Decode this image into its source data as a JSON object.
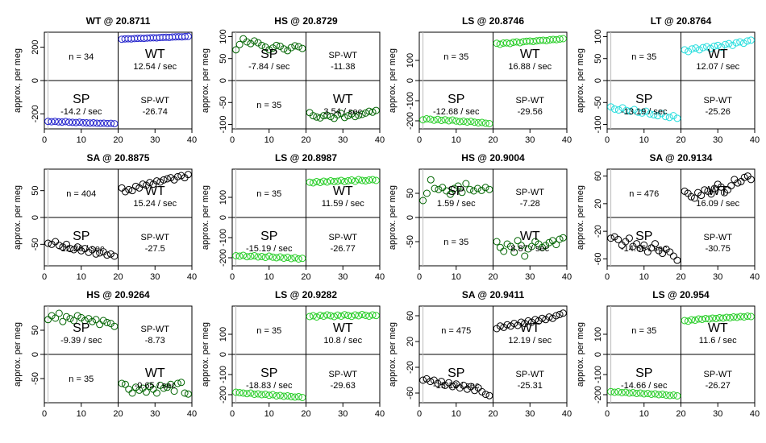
{
  "layout": {
    "rows": 3,
    "cols": 4
  },
  "chart_data": [
    {
      "type": "scatter",
      "title": "WT @ 20.8711",
      "ylabel": "approx. per meg",
      "xlim": [
        0,
        40
      ],
      "ylim": [
        -290,
        290
      ],
      "xticks": [
        0,
        10,
        20,
        30,
        40
      ],
      "yticks": [
        -200,
        0,
        200
      ],
      "color": "#2222cc",
      "points_left": [
        -245,
        -247,
        -245,
        -248,
        -249,
        -246,
        -250,
        -251,
        -252,
        -250,
        -253,
        -254,
        -255,
        -254,
        -256,
        -257,
        -256,
        -258,
        -257,
        -259
      ],
      "points_right": [
        248,
        250,
        251,
        250,
        252,
        253,
        254,
        253,
        255,
        256,
        257,
        256,
        258,
        259,
        260,
        259,
        261,
        262,
        263,
        262,
        264,
        265
      ],
      "quadrants": {
        "tl_n": "n = 34",
        "tr_label": "WT",
        "tr_rate": "12.54 / sec",
        "bl_label": "SP",
        "bl_rate": "-14.2 / sec",
        "br_label": "SP-WT",
        "br_value": "-26.74"
      }
    },
    {
      "type": "scatter",
      "title": "HS @ 20.8729",
      "ylabel": "approx. per meg",
      "xlim": [
        0,
        40
      ],
      "ylim": [
        -110,
        110
      ],
      "xticks": [
        0,
        10,
        20,
        30,
        40
      ],
      "yticks": [
        -100,
        -50,
        0,
        50,
        100
      ],
      "color": "#006400",
      "points_left": [
        70,
        82,
        95,
        88,
        84,
        90,
        86,
        80,
        76,
        70,
        74,
        80,
        78,
        72,
        68,
        75,
        79,
        77,
        73
      ],
      "points_right": [
        -73,
        -80,
        -83,
        -85,
        -80,
        -79,
        -82,
        -86,
        -78,
        -75,
        -84,
        -80,
        -76,
        -82,
        -79,
        -77,
        -74,
        -70,
        -72,
        -68
      ],
      "quadrants": {
        "tl_n": "",
        "tr_label": "SP-WT",
        "tr_rate": "-11.38",
        "bl_label": "n = 35",
        "bl_rate": "",
        "br_label": "WT",
        "br_value": "3.54 / sec"
      },
      "extra_text": {
        "tl_label": "SP",
        "tl_rate": "-7.84 / sec"
      }
    },
    {
      "type": "scatter",
      "title": "LS @ 20.8746",
      "ylabel": "approx. per meg",
      "xlim": [
        0,
        40
      ],
      "ylim": [
        -240,
        240
      ],
      "xticks": [
        0,
        10,
        20,
        30,
        40
      ],
      "yticks": [
        -200,
        -100,
        0,
        100
      ],
      "color": "#22cc22",
      "points_left": [
        -195,
        -190,
        -192,
        -197,
        -193,
        -198,
        -195,
        -200,
        -196,
        -201,
        -204,
        -202,
        -206,
        -203,
        -207,
        -210,
        -208,
        -212,
        -214
      ],
      "points_right": [
        185,
        180,
        186,
        187,
        184,
        190,
        192,
        188,
        193,
        195,
        196,
        194,
        197,
        199,
        200,
        198,
        202,
        204,
        203,
        206,
        208
      ],
      "quadrants": {
        "tl_n": "n = 35",
        "tr_label": "WT",
        "tr_rate": "16.88 / sec",
        "bl_label": "SP",
        "bl_rate": "-12.68 / sec",
        "br_label": "SP-WT",
        "br_value": "-29.56"
      }
    },
    {
      "type": "scatter",
      "title": "LT @ 20.8764",
      "ylabel": "approx. per meg",
      "xlim": [
        0,
        40
      ],
      "ylim": [
        -110,
        110
      ],
      "xticks": [
        0,
        10,
        20,
        30,
        40
      ],
      "yticks": [
        -100,
        -50,
        0,
        50,
        100
      ],
      "color": "#22dddd",
      "points_left": [
        -60,
        -65,
        -67,
        -62,
        -68,
        -70,
        -66,
        -72,
        -74,
        -70,
        -76,
        -78,
        -80,
        -75,
        -82,
        -84,
        -80,
        -86
      ],
      "points_right": [
        70,
        66,
        72,
        74,
        70,
        75,
        77,
        73,
        78,
        80,
        76,
        82,
        84,
        80,
        86,
        88,
        85,
        90,
        92
      ],
      "quadrants": {
        "tl_n": "n = 35",
        "tr_label": "WT",
        "tr_rate": "12.07 / sec",
        "bl_label": "SP",
        "bl_rate": "-13.19 / sec",
        "br_label": "SP-WT",
        "br_value": "-25.26"
      }
    },
    {
      "type": "scatter",
      "title": "SA @ 20.8875",
      "ylabel": "approx. per meg",
      "xlim": [
        0,
        40
      ],
      "ylim": [
        -90,
        90
      ],
      "xticks": [
        0,
        10,
        20,
        30,
        40
      ],
      "yticks": [
        -50,
        0,
        50
      ],
      "color": "#000000",
      "points_left": [
        -48,
        -50,
        -45,
        -52,
        -55,
        -50,
        -58,
        -60,
        -55,
        -62,
        -58,
        -65,
        -60,
        -68,
        -66,
        -64,
        -70,
        -68,
        -72
      ],
      "points_right": [
        55,
        48,
        52,
        50,
        58,
        55,
        62,
        60,
        65,
        62,
        68,
        66,
        70,
        72,
        74,
        70,
        76,
        78,
        74,
        80
      ],
      "quadrants": {
        "tl_n": "n = 404",
        "tr_label": "WT",
        "tr_rate": "15.24 / sec",
        "bl_label": "SP",
        "bl_rate": "-12.26 / sec",
        "br_label": "SP-WT",
        "br_value": "-27.5"
      }
    },
    {
      "type": "scatter",
      "title": "LS @ 20.8987",
      "ylabel": "approx. per meg",
      "xlim": [
        0,
        40
      ],
      "ylim": [
        -240,
        240
      ],
      "xticks": [
        0,
        10,
        20,
        30,
        40
      ],
      "yticks": [
        -200,
        -100,
        0,
        100
      ],
      "color": "#22cc22",
      "points_left": [
        -190,
        -192,
        -188,
        -195,
        -193,
        -190,
        -196,
        -194,
        -198,
        -192,
        -197,
        -200,
        -196,
        -202,
        -198,
        -204,
        -200,
        -206,
        -203
      ],
      "points_right": [
        175,
        172,
        178,
        174,
        180,
        176,
        182,
        178,
        180,
        184,
        178,
        182,
        186,
        180,
        188,
        184,
        182,
        186,
        188,
        184
      ],
      "quadrants": {
        "tl_n": "n = 35",
        "tr_label": "WT",
        "tr_rate": "11.59 / sec",
        "bl_label": "SP",
        "bl_rate": "-15.19 / sec",
        "br_label": "SP-WT",
        "br_value": "-26.77"
      }
    },
    {
      "type": "scatter",
      "title": "HS @ 20.9004",
      "ylabel": "approx. per meg",
      "xlim": [
        0,
        40
      ],
      "ylim": [
        -100,
        100
      ],
      "xticks": [
        0,
        10,
        20,
        30,
        40
      ],
      "yticks": [
        -50,
        0,
        50
      ],
      "color": "#006400",
      "points_left": [
        35,
        50,
        78,
        60,
        58,
        62,
        55,
        48,
        60,
        65,
        52,
        70,
        58,
        55,
        60,
        56,
        62,
        58
      ],
      "points_right": [
        -50,
        -62,
        -70,
        -55,
        -60,
        -72,
        -48,
        -58,
        -80,
        -65,
        -60,
        -50,
        -55,
        -62,
        -58,
        -52,
        -48,
        -56,
        -45,
        -42
      ],
      "quadrants": {
        "tl_n": "",
        "tr_label": "SP-WT",
        "tr_rate": "-7.28",
        "bl_label": "n = 35",
        "bl_rate": "",
        "br_label": "WT",
        "br_value": "8.87 / sec"
      },
      "extra_text": {
        "tl_label": "SP",
        "tl_rate": "1.59 / sec"
      }
    },
    {
      "type": "scatter",
      "title": "SA @ 20.9134",
      "ylabel": "approx. per meg",
      "xlim": [
        0,
        40
      ],
      "ylim": [
        -70,
        70
      ],
      "xticks": [
        0,
        10,
        20,
        30,
        40
      ],
      "yticks": [
        -60,
        -20,
        20,
        60
      ],
      "color": "#000000",
      "points_left": [
        -30,
        -28,
        -32,
        -40,
        -35,
        -30,
        -42,
        -38,
        -45,
        -40,
        -50,
        -44,
        -38,
        -48,
        -52,
        -46,
        -50,
        -56,
        -62
      ],
      "points_right": [
        38,
        35,
        30,
        28,
        36,
        32,
        40,
        38,
        34,
        42,
        48,
        44,
        36,
        40,
        46,
        55,
        50,
        52,
        58,
        60,
        55
      ],
      "quadrants": {
        "tl_n": "n = 476",
        "tr_label": "WT",
        "tr_rate": "16.09 / sec",
        "bl_label": "SP",
        "bl_rate": "-14.66 / sec",
        "br_label": "SP-WT",
        "br_value": "-30.75"
      }
    },
    {
      "type": "scatter",
      "title": "HS @ 20.9264",
      "ylabel": "approx. per meg",
      "xlim": [
        0,
        40
      ],
      "ylim": [
        -100,
        100
      ],
      "xticks": [
        0,
        10,
        20,
        30,
        40
      ],
      "yticks": [
        -50,
        0,
        50
      ],
      "color": "#006400",
      "points_left": [
        72,
        80,
        75,
        85,
        68,
        78,
        74,
        70,
        80,
        76,
        70,
        74,
        68,
        72,
        62,
        70,
        66,
        64,
        58
      ],
      "points_right": [
        -60,
        -62,
        -72,
        -80,
        -68,
        -74,
        -70,
        -78,
        -66,
        -72,
        -80,
        -64,
        -70,
        -68,
        -62,
        -76,
        -60,
        -58,
        -80,
        -82
      ],
      "quadrants": {
        "tl_n": "",
        "tr_label": "SP-WT",
        "tr_rate": "-8.73",
        "bl_label": "n = 35",
        "bl_rate": "",
        "br_label": "WT",
        "br_value": "-0.65 / sec"
      },
      "extra_text": {
        "tl_label": "SP",
        "tl_rate": "-9.39 / sec"
      }
    },
    {
      "type": "scatter",
      "title": "LS @ 20.9282",
      "ylabel": "approx. per meg",
      "xlim": [
        0,
        40
      ],
      "ylim": [
        -240,
        240
      ],
      "xticks": [
        0,
        10,
        20,
        30,
        40
      ],
      "yticks": [
        -200,
        -100,
        0,
        100
      ],
      "color": "#22cc22",
      "points_left": [
        -188,
        -190,
        -192,
        -195,
        -192,
        -198,
        -196,
        -200,
        -198,
        -203,
        -200,
        -206,
        -204,
        -208,
        -206,
        -210,
        -212,
        -210,
        -214
      ],
      "points_right": [
        188,
        192,
        186,
        194,
        190,
        196,
        192,
        188,
        195,
        190,
        197,
        193,
        189,
        196,
        192,
        198,
        194,
        190,
        196,
        193
      ],
      "quadrants": {
        "tl_n": "n = 35",
        "tr_label": "WT",
        "tr_rate": "10.8 / sec",
        "bl_label": "SP",
        "bl_rate": "-18.83 / sec",
        "br_label": "SP-WT",
        "br_value": "-29.63"
      }
    },
    {
      "type": "scatter",
      "title": "SA @ 20.9411",
      "ylabel": "approx. per meg",
      "xlim": [
        0,
        40
      ],
      "ylim": [
        -75,
        75
      ],
      "xticks": [
        0,
        10,
        20,
        30,
        40
      ],
      "yticks": [
        -60,
        -20,
        20,
        60
      ],
      "color": "#000000",
      "points_left": [
        -40,
        -38,
        -42,
        -40,
        -45,
        -42,
        -48,
        -44,
        -50,
        -46,
        -52,
        -48,
        -54,
        -50,
        -56,
        -52,
        -58,
        -62,
        -64
      ],
      "points_right": [
        40,
        44,
        42,
        46,
        44,
        48,
        45,
        50,
        48,
        52,
        50,
        54,
        52,
        56,
        54,
        58,
        56,
        60,
        62,
        64
      ],
      "quadrants": {
        "tl_n": "n = 475",
        "tr_label": "WT",
        "tr_rate": "12.19 / sec",
        "bl_label": "SP",
        "bl_rate": "-13.12 / sec",
        "br_label": "SP-WT",
        "br_value": "-25.31"
      }
    },
    {
      "type": "scatter",
      "title": "LS @ 20.954",
      "ylabel": "approx. per meg",
      "xlim": [
        0,
        40
      ],
      "ylim": [
        -240,
        240
      ],
      "xticks": [
        0,
        10,
        20,
        30,
        40
      ],
      "yticks": [
        -200,
        -100,
        0,
        100
      ],
      "color": "#22cc22",
      "points_left": [
        -185,
        -188,
        -186,
        -190,
        -188,
        -192,
        -190,
        -194,
        -192,
        -196,
        -194,
        -198,
        -196,
        -200,
        -198,
        -202,
        -204,
        -202,
        -206
      ],
      "points_right": [
        168,
        165,
        172,
        170,
        176,
        174,
        178,
        176,
        180,
        178,
        182,
        180,
        184,
        182,
        186,
        184,
        188,
        186,
        190,
        188
      ],
      "quadrants": {
        "tl_n": "n = 35",
        "tr_label": "WT",
        "tr_rate": "11.6 / sec",
        "bl_label": "SP",
        "bl_rate": "-14.66 / sec",
        "br_label": "SP-WT",
        "br_value": "-26.27"
      }
    }
  ]
}
